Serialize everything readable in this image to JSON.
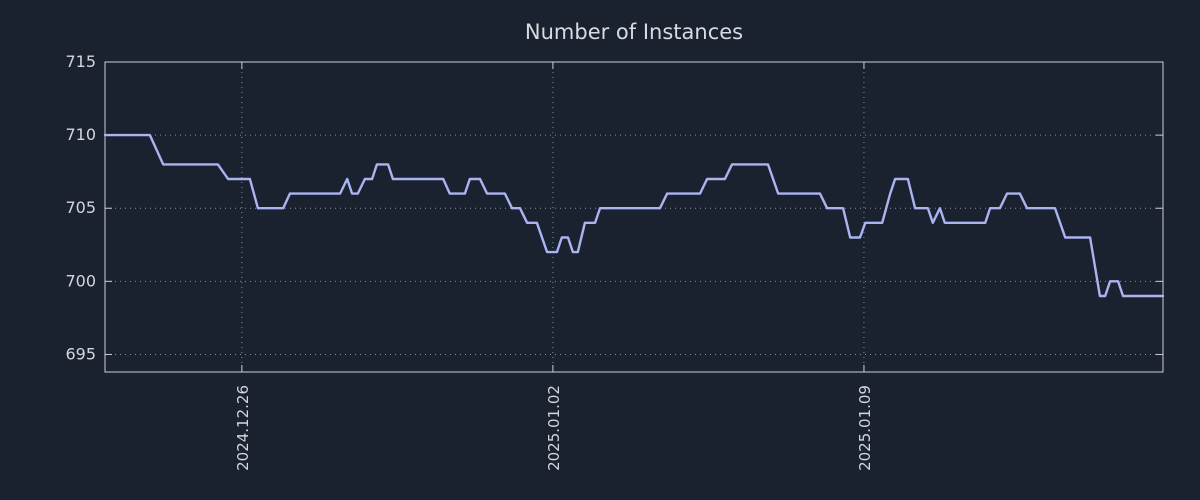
{
  "chart_data": {
    "type": "line",
    "title": "Number of Instances",
    "xlabel": "",
    "ylabel": "",
    "xlim": [
      0,
      23.81
    ],
    "ylim": [
      693.8,
      715
    ],
    "y_ticks": [
      695,
      700,
      705,
      710,
      715
    ],
    "x_ticks": [
      {
        "x": 3.08,
        "label": "2024.12.26"
      },
      {
        "x": 10.08,
        "label": "2025.01.02"
      },
      {
        "x": 17.08,
        "label": "2025.01.09"
      }
    ],
    "grid": "dotted",
    "legend": "none",
    "x_unit": "days-since-2024.12.23",
    "series": [
      {
        "name": "instances",
        "color": "#aab4f0",
        "points": [
          [
            0.0,
            710
          ],
          [
            1.01,
            710
          ],
          [
            1.31,
            708
          ],
          [
            2.54,
            708
          ],
          [
            2.77,
            707
          ],
          [
            3.26,
            707
          ],
          [
            3.44,
            705
          ],
          [
            4.01,
            705
          ],
          [
            4.16,
            706
          ],
          [
            5.29,
            706
          ],
          [
            5.45,
            707
          ],
          [
            5.56,
            706
          ],
          [
            5.69,
            706
          ],
          [
            5.85,
            707
          ],
          [
            6.01,
            707
          ],
          [
            6.12,
            708
          ],
          [
            6.37,
            708
          ],
          [
            6.48,
            707
          ],
          [
            7.61,
            707
          ],
          [
            7.76,
            706
          ],
          [
            8.1,
            706
          ],
          [
            8.21,
            707
          ],
          [
            8.44,
            707
          ],
          [
            8.6,
            706
          ],
          [
            9.0,
            706
          ],
          [
            9.16,
            705
          ],
          [
            9.34,
            705
          ],
          [
            9.5,
            704
          ],
          [
            9.72,
            704
          ],
          [
            9.95,
            702
          ],
          [
            10.17,
            702
          ],
          [
            10.28,
            703
          ],
          [
            10.42,
            703
          ],
          [
            10.53,
            702
          ],
          [
            10.64,
            702
          ],
          [
            10.8,
            704
          ],
          [
            11.03,
            704
          ],
          [
            11.14,
            705
          ],
          [
            12.49,
            705
          ],
          [
            12.65,
            706
          ],
          [
            13.39,
            706
          ],
          [
            13.55,
            707
          ],
          [
            13.95,
            707
          ],
          [
            14.11,
            708
          ],
          [
            14.92,
            708
          ],
          [
            15.15,
            706
          ],
          [
            16.09,
            706
          ],
          [
            16.25,
            705
          ],
          [
            16.61,
            705
          ],
          [
            16.77,
            703
          ],
          [
            16.99,
            703
          ],
          [
            17.11,
            704
          ],
          [
            17.49,
            704
          ],
          [
            17.67,
            706
          ],
          [
            17.78,
            707
          ],
          [
            18.07,
            707
          ],
          [
            18.23,
            705
          ],
          [
            18.52,
            705
          ],
          [
            18.63,
            704
          ],
          [
            18.79,
            705
          ],
          [
            18.9,
            704
          ],
          [
            19.81,
            704
          ],
          [
            19.92,
            705
          ],
          [
            20.14,
            705
          ],
          [
            20.3,
            706
          ],
          [
            20.59,
            706
          ],
          [
            20.75,
            705
          ],
          [
            21.38,
            705
          ],
          [
            21.61,
            703
          ],
          [
            22.17,
            703
          ],
          [
            22.39,
            699
          ],
          [
            22.51,
            699
          ],
          [
            22.62,
            700
          ],
          [
            22.8,
            700
          ],
          [
            22.91,
            699
          ],
          [
            23.81,
            699
          ]
        ]
      }
    ]
  },
  "colors": {
    "background": "#1a2230",
    "line": "#aab4f0",
    "axis": "#c9ced8",
    "grid": "#9aa2b2",
    "text": "#d2d6de",
    "title": "#d7dbe2"
  }
}
